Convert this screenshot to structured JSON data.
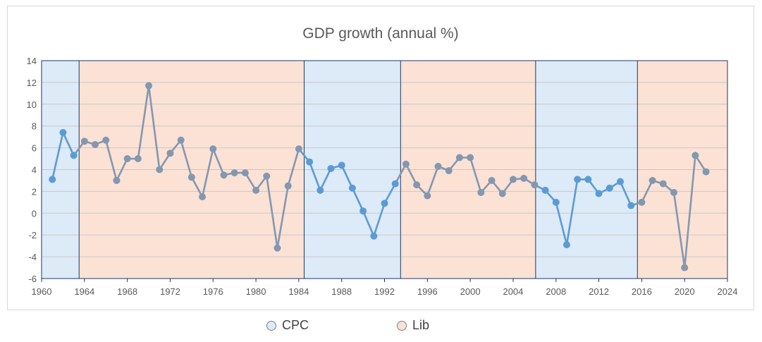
{
  "chart_data": {
    "type": "line",
    "title": "GDP growth (annual %)",
    "xlabel": "",
    "ylabel": "",
    "xlim": [
      1960,
      2024
    ],
    "ylim": [
      -6,
      14
    ],
    "x_ticks": [
      1960,
      1964,
      1968,
      1972,
      1976,
      1980,
      1984,
      1988,
      1992,
      1996,
      2000,
      2004,
      2008,
      2012,
      2016,
      2020,
      2024
    ],
    "y_ticks": [
      -6,
      -4,
      -2,
      0,
      2,
      4,
      6,
      8,
      10,
      12,
      14
    ],
    "grid": "horizontal",
    "legend_position": "bottom",
    "periods": [
      {
        "party": "CPC",
        "start": 1960,
        "end": 1963.5,
        "color": "#ddeaf7"
      },
      {
        "party": "Lib",
        "start": 1963.5,
        "end": 1984.5,
        "color": "#fbe2d5"
      },
      {
        "party": "CPC",
        "start": 1984.5,
        "end": 1993.5,
        "color": "#ddeaf7"
      },
      {
        "party": "Lib",
        "start": 1993.5,
        "end": 2006.1,
        "color": "#fbe2d5"
      },
      {
        "party": "CPC",
        "start": 2006.1,
        "end": 2015.6,
        "color": "#ddeaf7"
      },
      {
        "party": "Lib",
        "start": 2015.6,
        "end": 2024,
        "color": "#fbe2d5"
      }
    ],
    "legend": [
      {
        "label": "CPC",
        "color": "#ddeaf7"
      },
      {
        "label": "Lib",
        "color": "#fbe2d5"
      }
    ],
    "series_colors": {
      "CPC": "#5b9bd5",
      "Lib": "#8497b0"
    },
    "series": [
      {
        "x": [
          1961,
          1962,
          1963,
          1964,
          1965,
          1966,
          1967,
          1968,
          1969,
          1970,
          1971,
          1972,
          1973,
          1974,
          1975,
          1976,
          1977,
          1978,
          1979,
          1980,
          1981,
          1982,
          1983,
          1984,
          1985,
          1986,
          1987,
          1988,
          1989,
          1990,
          1991,
          1992,
          1993,
          1994,
          1995,
          1996,
          1997,
          1998,
          1999,
          2000,
          2001,
          2002,
          2003,
          2004,
          2005,
          2006,
          2007,
          2008,
          2009,
          2010,
          2011,
          2012,
          2013,
          2014,
          2015,
          2016,
          2017,
          2018,
          2019,
          2020,
          2021,
          2022
        ],
        "values": [
          3.1,
          7.4,
          5.3,
          6.6,
          6.3,
          6.7,
          3.0,
          5.0,
          5.0,
          11.7,
          4.0,
          5.5,
          6.7,
          3.3,
          1.5,
          5.9,
          3.5,
          3.7,
          3.7,
          2.1,
          3.4,
          -3.2,
          2.5,
          5.9,
          4.7,
          2.1,
          4.1,
          4.4,
          2.3,
          0.2,
          -2.1,
          0.9,
          2.7,
          4.5,
          2.6,
          1.6,
          4.3,
          3.9,
          5.1,
          5.1,
          1.9,
          3.0,
          1.8,
          3.1,
          3.2,
          2.6,
          2.1,
          1.0,
          -2.9,
          3.1,
          3.1,
          1.8,
          2.3,
          2.9,
          0.7,
          1.0,
          3.0,
          2.7,
          1.9,
          -5.0,
          5.3,
          3.8
        ]
      }
    ]
  }
}
